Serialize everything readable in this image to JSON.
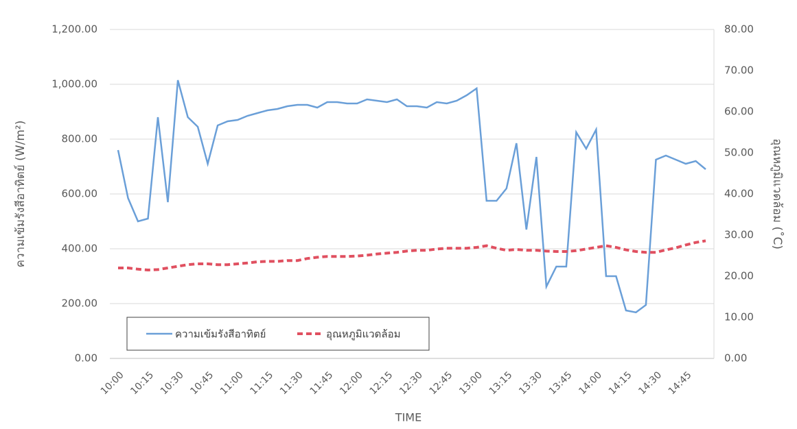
{
  "chart_data": {
    "type": "line",
    "categories": [
      "10:00",
      null,
      null,
      "10:15",
      null,
      null,
      "10:30",
      null,
      null,
      "10:45",
      null,
      null,
      "11:00",
      null,
      null,
      "11:15",
      null,
      null,
      "11:30",
      null,
      null,
      "11:45",
      null,
      null,
      "12:00",
      null,
      null,
      "12:15",
      null,
      null,
      "12:30",
      null,
      null,
      "12:45",
      null,
      null,
      "13:00",
      null,
      null,
      "13:15",
      null,
      null,
      "13:30",
      null,
      null,
      "13:45",
      null,
      null,
      "14:00",
      null,
      null,
      "14:15",
      null,
      null,
      "14:30",
      null,
      null,
      "14:45",
      null,
      null
    ],
    "series": [
      {
        "name": "ความเข้มรังสีอาทิตย์",
        "color": "#6a9fd8",
        "axis": "y",
        "values": [
          760,
          585,
          500,
          510,
          880,
          570,
          1015,
          880,
          845,
          710,
          850,
          865,
          870,
          885,
          895,
          905,
          910,
          920,
          925,
          925,
          915,
          935,
          935,
          930,
          930,
          945,
          940,
          935,
          945,
          920,
          920,
          915,
          935,
          930,
          940,
          960,
          985,
          575,
          575,
          620,
          785,
          470,
          735,
          262,
          335,
          335,
          825,
          765,
          835,
          300,
          300,
          175,
          168,
          195,
          725,
          740,
          725,
          710,
          720,
          690
        ]
      },
      {
        "name": "อุณหภูมิแวดล้อม",
        "color": "#e05060",
        "axis": "y2",
        "dashed": true,
        "values": [
          22,
          22,
          21.7,
          21.5,
          21.6,
          22,
          22.4,
          22.8,
          23,
          23,
          22.8,
          22.8,
          23,
          23.2,
          23.5,
          23.6,
          23.6,
          23.8,
          23.8,
          24.3,
          24.6,
          24.8,
          24.8,
          24.8,
          24.9,
          25.1,
          25.4,
          25.6,
          25.8,
          26.1,
          26.3,
          26.3,
          26.6,
          26.8,
          26.8,
          26.8,
          27,
          27.4,
          26.8,
          26.3,
          26.5,
          26.3,
          26.3,
          26.1,
          26,
          26,
          26.2,
          26.6,
          27,
          27.4,
          27,
          26.4,
          26,
          25.8,
          25.8,
          26.4,
          26.9,
          27.6,
          28.2,
          28.6
        ]
      }
    ],
    "ylabel": "ความเข้มรังสีอาทิตย์ (W/m²)",
    "y2label": "อุณหภูมิแวดล้อม (˚C)",
    "xlabel": "TIME",
    "ylim": [
      0,
      1200
    ],
    "yticks": [
      {
        "value": 0,
        "label": "0.00"
      },
      {
        "value": 200,
        "label": "200.00"
      },
      {
        "value": 400,
        "label": "400.00"
      },
      {
        "value": 600,
        "label": "600.00"
      },
      {
        "value": 800,
        "label": "800.00"
      },
      {
        "value": 1000,
        "label": "1,000.00"
      },
      {
        "value": 1200,
        "label": "1,200.00"
      }
    ],
    "y2lim": [
      0,
      80
    ],
    "y2ticks": [
      {
        "value": 0,
        "label": "0.00"
      },
      {
        "value": 10,
        "label": "10.00"
      },
      {
        "value": 20,
        "label": "20.00"
      },
      {
        "value": 30,
        "label": "30.00"
      },
      {
        "value": 40,
        "label": "40.00"
      },
      {
        "value": 50,
        "label": "50.00"
      },
      {
        "value": 60,
        "label": "60.00"
      },
      {
        "value": 70,
        "label": "70.00"
      },
      {
        "value": 80,
        "label": "80.00"
      }
    ],
    "grid": true,
    "legend": "lower left"
  }
}
